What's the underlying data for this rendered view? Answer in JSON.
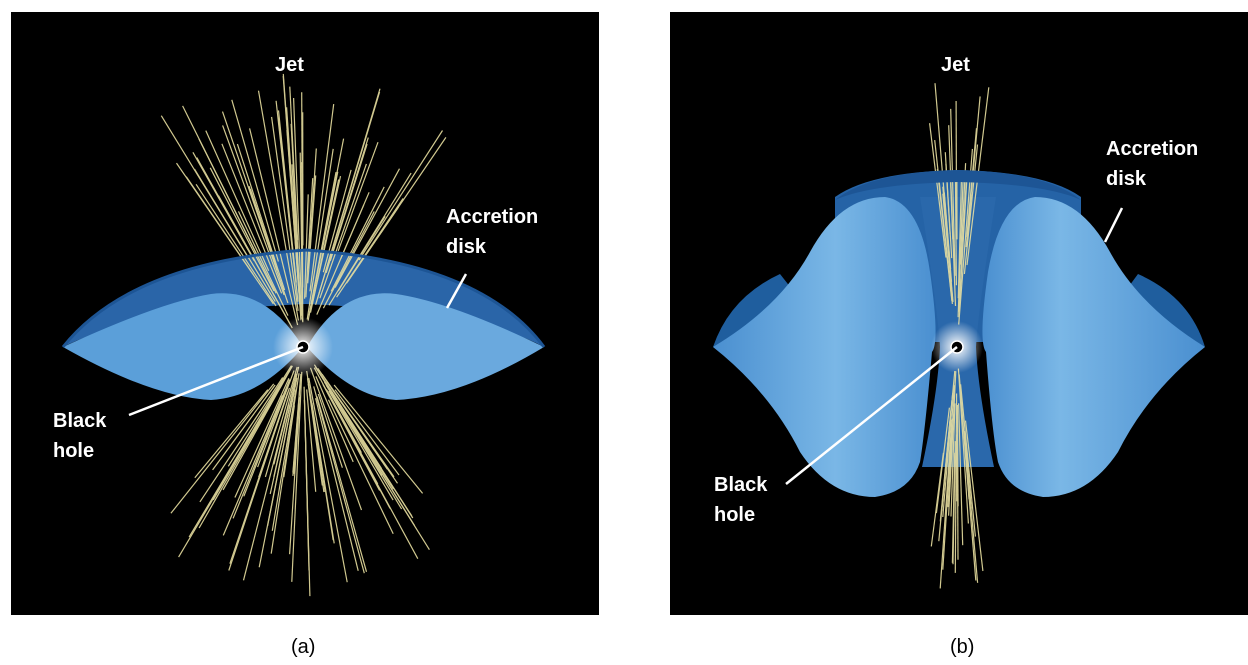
{
  "panels": [
    {
      "id": "a",
      "caption": "(a)",
      "labels": {
        "jet": "Jet",
        "accretion_disk": "Accretion\ndisk",
        "black_hole": "Black\nhole"
      }
    },
    {
      "id": "b",
      "caption": "(b)",
      "labels": {
        "jet": "Jet",
        "accretion_disk": "Accretion\ndisk",
        "black_hole": "Black\nhole"
      }
    }
  ],
  "colors": {
    "background": "#000000",
    "disk_light": "#6fb0e2",
    "disk_mid": "#4a8fd0",
    "disk_dark": "#1f5e9e",
    "jet": "#e8dfa0",
    "label": "#ffffff"
  }
}
